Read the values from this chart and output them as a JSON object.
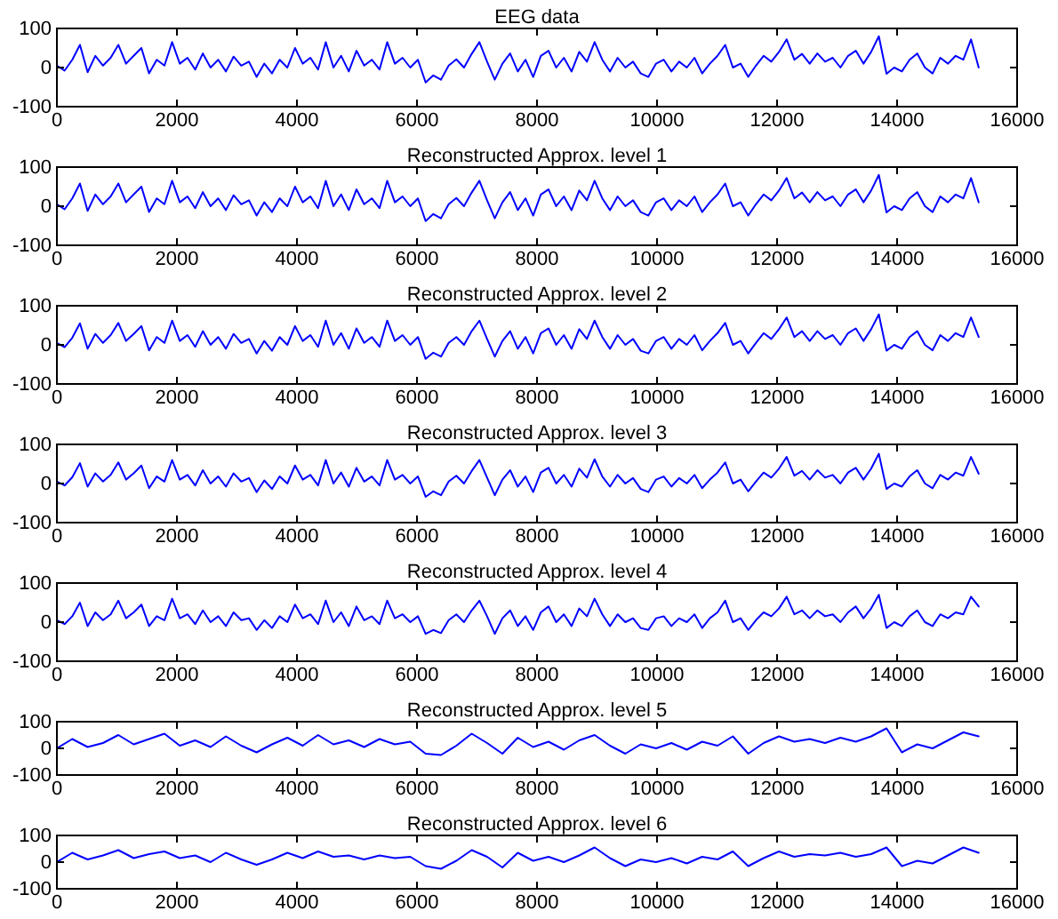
{
  "chart_data": [
    {
      "type": "line",
      "title": "EEG data",
      "color": "#0000ff",
      "xlim": [
        0,
        16000
      ],
      "ylim": [
        -100,
        100
      ],
      "xticks": [
        0,
        2000,
        4000,
        6000,
        8000,
        10000,
        12000,
        14000,
        16000
      ],
      "yticks": [
        -100,
        0,
        100
      ],
      "x": [
        0,
        128,
        256,
        384,
        512,
        640,
        768,
        896,
        1024,
        1152,
        1280,
        1408,
        1536,
        1664,
        1792,
        1920,
        2048,
        2176,
        2304,
        2432,
        2560,
        2688,
        2816,
        2944,
        3072,
        3200,
        3328,
        3456,
        3584,
        3712,
        3840,
        3968,
        4096,
        4224,
        4352,
        4480,
        4608,
        4736,
        4864,
        4992,
        5120,
        5248,
        5376,
        5504,
        5632,
        5760,
        5888,
        6016,
        6144,
        6272,
        6400,
        6528,
        6656,
        6784,
        6912,
        7040,
        7168,
        7296,
        7424,
        7552,
        7680,
        7808,
        7936,
        8064,
        8192,
        8320,
        8448,
        8576,
        8704,
        8832,
        8960,
        9088,
        9216,
        9344,
        9472,
        9600,
        9728,
        9856,
        9984,
        10112,
        10240,
        10368,
        10496,
        10624,
        10752,
        10880,
        11008,
        11136,
        11264,
        11392,
        11520,
        11648,
        11776,
        11904,
        12032,
        12160,
        12288,
        12416,
        12544,
        12672,
        12800,
        12928,
        13056,
        13184,
        13312,
        13440,
        13568,
        13696,
        13824,
        13952,
        14080,
        14208,
        14336,
        14464,
        14592,
        14720,
        14848,
        14976,
        15104,
        15232,
        15360
      ],
      "values": [
        5,
        -8,
        20,
        58,
        -12,
        30,
        5,
        25,
        58,
        10,
        30,
        50,
        -15,
        20,
        5,
        65,
        10,
        25,
        -5,
        36,
        0,
        20,
        -10,
        28,
        5,
        15,
        -24,
        10,
        -15,
        20,
        0,
        50,
        10,
        25,
        -5,
        65,
        0,
        30,
        -10,
        43,
        5,
        20,
        -5,
        65,
        10,
        25,
        0,
        20,
        -38,
        -20,
        -31,
        5,
        21,
        0,
        35,
        65,
        15,
        -31,
        10,
        36,
        -10,
        20,
        -24,
        30,
        43,
        0,
        25,
        -10,
        40,
        15,
        65,
        20,
        -10,
        25,
        0,
        15,
        -15,
        -24,
        10,
        20,
        -10,
        15,
        0,
        25,
        -15,
        10,
        30,
        58,
        0,
        10,
        -24,
        5,
        30,
        15,
        40,
        72,
        20,
        35,
        10,
        36,
        15,
        25,
        0,
        30,
        43,
        10,
        40,
        80,
        -16,
        0,
        -10,
        20,
        36,
        0,
        -15,
        25,
        10,
        30,
        20,
        72,
        0
      ]
    },
    {
      "type": "line",
      "title": "Reconstructed Approx. level 1",
      "color": "#0000ff",
      "xlim": [
        0,
        16000
      ],
      "ylim": [
        -100,
        100
      ],
      "xticks": [
        0,
        2000,
        4000,
        6000,
        8000,
        10000,
        12000,
        14000,
        16000
      ],
      "yticks": [
        -100,
        0,
        100
      ],
      "x": [
        0,
        128,
        256,
        384,
        512,
        640,
        768,
        896,
        1024,
        1152,
        1280,
        1408,
        1536,
        1664,
        1792,
        1920,
        2048,
        2176,
        2304,
        2432,
        2560,
        2688,
        2816,
        2944,
        3072,
        3200,
        3328,
        3456,
        3584,
        3712,
        3840,
        3968,
        4096,
        4224,
        4352,
        4480,
        4608,
        4736,
        4864,
        4992,
        5120,
        5248,
        5376,
        5504,
        5632,
        5760,
        5888,
        6016,
        6144,
        6272,
        6400,
        6528,
        6656,
        6784,
        6912,
        7040,
        7168,
        7296,
        7424,
        7552,
        7680,
        7808,
        7936,
        8064,
        8192,
        8320,
        8448,
        8576,
        8704,
        8832,
        8960,
        9088,
        9216,
        9344,
        9472,
        9600,
        9728,
        9856,
        9984,
        10112,
        10240,
        10368,
        10496,
        10624,
        10752,
        10880,
        11008,
        11136,
        11264,
        11392,
        11520,
        11648,
        11776,
        11904,
        12032,
        12160,
        12288,
        12416,
        12544,
        12672,
        12800,
        12928,
        13056,
        13184,
        13312,
        13440,
        13568,
        13696,
        13824,
        13952,
        14080,
        14208,
        14336,
        14464,
        14592,
        14720,
        14848,
        14976,
        15104,
        15232,
        15360
      ],
      "values": [
        5,
        -8,
        20,
        58,
        -12,
        30,
        5,
        25,
        58,
        10,
        30,
        50,
        -15,
        20,
        5,
        65,
        10,
        25,
        -5,
        36,
        0,
        20,
        -10,
        28,
        5,
        15,
        -24,
        10,
        -15,
        20,
        0,
        50,
        10,
        25,
        -5,
        65,
        0,
        30,
        -10,
        43,
        5,
        20,
        -5,
        65,
        10,
        25,
        0,
        20,
        -38,
        -20,
        -31,
        5,
        21,
        0,
        35,
        65,
        15,
        -31,
        10,
        36,
        -10,
        20,
        -24,
        30,
        43,
        0,
        25,
        -10,
        40,
        15,
        65,
        20,
        -10,
        25,
        0,
        15,
        -15,
        -24,
        10,
        20,
        -10,
        15,
        0,
        25,
        -15,
        10,
        30,
        58,
        0,
        10,
        -24,
        5,
        30,
        15,
        40,
        72,
        20,
        35,
        10,
        36,
        15,
        25,
        0,
        30,
        43,
        10,
        40,
        80,
        -16,
        0,
        -10,
        20,
        36,
        0,
        -15,
        25,
        10,
        30,
        20,
        72,
        10
      ]
    },
    {
      "type": "line",
      "title": "Reconstructed Approx. level 2",
      "color": "#0000ff",
      "xlim": [
        0,
        16000
      ],
      "ylim": [
        -100,
        100
      ],
      "xticks": [
        0,
        2000,
        4000,
        6000,
        8000,
        10000,
        12000,
        14000,
        16000
      ],
      "yticks": [
        -100,
        0,
        100
      ],
      "x": [
        0,
        128,
        256,
        384,
        512,
        640,
        768,
        896,
        1024,
        1152,
        1280,
        1408,
        1536,
        1664,
        1792,
        1920,
        2048,
        2176,
        2304,
        2432,
        2560,
        2688,
        2816,
        2944,
        3072,
        3200,
        3328,
        3456,
        3584,
        3712,
        3840,
        3968,
        4096,
        4224,
        4352,
        4480,
        4608,
        4736,
        4864,
        4992,
        5120,
        5248,
        5376,
        5504,
        5632,
        5760,
        5888,
        6016,
        6144,
        6272,
        6400,
        6528,
        6656,
        6784,
        6912,
        7040,
        7168,
        7296,
        7424,
        7552,
        7680,
        7808,
        7936,
        8064,
        8192,
        8320,
        8448,
        8576,
        8704,
        8832,
        8960,
        9088,
        9216,
        9344,
        9472,
        9600,
        9728,
        9856,
        9984,
        10112,
        10240,
        10368,
        10496,
        10624,
        10752,
        10880,
        11008,
        11136,
        11264,
        11392,
        11520,
        11648,
        11776,
        11904,
        12032,
        12160,
        12288,
        12416,
        12544,
        12672,
        12800,
        12928,
        13056,
        13184,
        13312,
        13440,
        13568,
        13696,
        13824,
        13952,
        14080,
        14208,
        14336,
        14464,
        14592,
        14720,
        14848,
        14976,
        15104,
        15232,
        15360
      ],
      "values": [
        5,
        -6,
        18,
        55,
        -10,
        28,
        5,
        25,
        56,
        10,
        28,
        48,
        -14,
        20,
        5,
        62,
        10,
        25,
        -5,
        35,
        0,
        20,
        -10,
        28,
        5,
        15,
        -22,
        10,
        -15,
        20,
        0,
        48,
        10,
        25,
        -5,
        62,
        0,
        30,
        -10,
        42,
        5,
        20,
        -5,
        62,
        10,
        25,
        0,
        20,
        -36,
        -20,
        -30,
        5,
        20,
        0,
        35,
        62,
        15,
        -30,
        10,
        35,
        -10,
        20,
        -22,
        30,
        42,
        0,
        25,
        -10,
        40,
        15,
        62,
        20,
        -10,
        25,
        0,
        15,
        -15,
        -22,
        10,
        20,
        -10,
        15,
        0,
        25,
        -14,
        10,
        30,
        56,
        0,
        10,
        -22,
        5,
        30,
        15,
        40,
        70,
        20,
        35,
        10,
        35,
        15,
        25,
        0,
        30,
        42,
        10,
        40,
        78,
        -15,
        0,
        -10,
        20,
        35,
        0,
        -14,
        25,
        10,
        30,
        20,
        70,
        20
      ]
    },
    {
      "type": "line",
      "title": "Reconstructed Approx. level 3",
      "color": "#0000ff",
      "xlim": [
        0,
        16000
      ],
      "ylim": [
        -100,
        100
      ],
      "xticks": [
        0,
        2000,
        4000,
        6000,
        8000,
        10000,
        12000,
        14000,
        16000
      ],
      "yticks": [
        -100,
        0,
        100
      ],
      "x": [
        0,
        128,
        256,
        384,
        512,
        640,
        768,
        896,
        1024,
        1152,
        1280,
        1408,
        1536,
        1664,
        1792,
        1920,
        2048,
        2176,
        2304,
        2432,
        2560,
        2688,
        2816,
        2944,
        3072,
        3200,
        3328,
        3456,
        3584,
        3712,
        3840,
        3968,
        4096,
        4224,
        4352,
        4480,
        4608,
        4736,
        4864,
        4992,
        5120,
        5248,
        5376,
        5504,
        5632,
        5760,
        5888,
        6016,
        6144,
        6272,
        6400,
        6528,
        6656,
        6784,
        6912,
        7040,
        7168,
        7296,
        7424,
        7552,
        7680,
        7808,
        7936,
        8064,
        8192,
        8320,
        8448,
        8576,
        8704,
        8832,
        8960,
        9088,
        9216,
        9344,
        9472,
        9600,
        9728,
        9856,
        9984,
        10112,
        10240,
        10368,
        10496,
        10624,
        10752,
        10880,
        11008,
        11136,
        11264,
        11392,
        11520,
        11648,
        11776,
        11904,
        12032,
        12160,
        12288,
        12416,
        12544,
        12672,
        12800,
        12928,
        13056,
        13184,
        13312,
        13440,
        13568,
        13696,
        13824,
        13952,
        14080,
        14208,
        14336,
        14464,
        14592,
        14720,
        14848,
        14976,
        15104,
        15232,
        15360
      ],
      "values": [
        5,
        -5,
        16,
        52,
        -8,
        26,
        5,
        22,
        54,
        10,
        26,
        46,
        -12,
        18,
        5,
        60,
        10,
        22,
        -5,
        34,
        0,
        18,
        -8,
        26,
        5,
        14,
        -22,
        8,
        -14,
        18,
        0,
        46,
        10,
        22,
        -5,
        60,
        0,
        28,
        -8,
        40,
        5,
        18,
        -5,
        60,
        10,
        22,
        0,
        18,
        -34,
        -20,
        -30,
        5,
        20,
        0,
        32,
        60,
        15,
        -30,
        10,
        34,
        -8,
        18,
        -22,
        28,
        40,
        0,
        22,
        -8,
        38,
        15,
        62,
        18,
        -8,
        22,
        0,
        14,
        -14,
        -22,
        10,
        18,
        -8,
        14,
        0,
        22,
        -12,
        10,
        28,
        54,
        0,
        10,
        -20,
        5,
        28,
        15,
        38,
        68,
        20,
        32,
        10,
        34,
        15,
        22,
        0,
        28,
        40,
        10,
        38,
        76,
        -14,
        0,
        -8,
        18,
        34,
        0,
        -12,
        22,
        10,
        28,
        20,
        68,
        25
      ]
    },
    {
      "type": "line",
      "title": "Reconstructed Approx. level 4",
      "color": "#0000ff",
      "xlim": [
        0,
        16000
      ],
      "ylim": [
        -100,
        100
      ],
      "xticks": [
        0,
        2000,
        4000,
        6000,
        8000,
        10000,
        12000,
        14000,
        16000
      ],
      "yticks": [
        -100,
        0,
        100
      ],
      "x": [
        0,
        128,
        256,
        384,
        512,
        640,
        768,
        896,
        1024,
        1152,
        1280,
        1408,
        1536,
        1664,
        1792,
        1920,
        2048,
        2176,
        2304,
        2432,
        2560,
        2688,
        2816,
        2944,
        3072,
        3200,
        3328,
        3456,
        3584,
        3712,
        3840,
        3968,
        4096,
        4224,
        4352,
        4480,
        4608,
        4736,
        4864,
        4992,
        5120,
        5248,
        5376,
        5504,
        5632,
        5760,
        5888,
        6016,
        6144,
        6272,
        6400,
        6528,
        6656,
        6784,
        6912,
        7040,
        7168,
        7296,
        7424,
        7552,
        7680,
        7808,
        7936,
        8064,
        8192,
        8320,
        8448,
        8576,
        8704,
        8832,
        8960,
        9088,
        9216,
        9344,
        9472,
        9600,
        9728,
        9856,
        9984,
        10112,
        10240,
        10368,
        10496,
        10624,
        10752,
        10880,
        11008,
        11136,
        11264,
        11392,
        11520,
        11648,
        11776,
        11904,
        12032,
        12160,
        12288,
        12416,
        12544,
        12672,
        12800,
        12928,
        13056,
        13184,
        13312,
        13440,
        13568,
        13696,
        13824,
        13952,
        14080,
        14208,
        14336,
        14464,
        14592,
        14720,
        14848,
        14976,
        15104,
        15232,
        15360
      ],
      "values": [
        5,
        -5,
        15,
        50,
        -10,
        25,
        5,
        20,
        55,
        10,
        25,
        45,
        -10,
        15,
        5,
        60,
        10,
        20,
        -5,
        30,
        0,
        15,
        -10,
        25,
        5,
        10,
        -20,
        5,
        -15,
        15,
        0,
        45,
        10,
        20,
        -5,
        55,
        0,
        25,
        -10,
        40,
        5,
        15,
        -5,
        55,
        10,
        20,
        0,
        15,
        -30,
        -20,
        -28,
        5,
        20,
        0,
        30,
        55,
        15,
        -30,
        10,
        30,
        -10,
        15,
        -20,
        25,
        40,
        0,
        20,
        -10,
        35,
        15,
        60,
        20,
        -10,
        20,
        0,
        10,
        -15,
        -20,
        10,
        15,
        -10,
        10,
        0,
        20,
        -15,
        10,
        25,
        55,
        0,
        10,
        -20,
        5,
        25,
        15,
        35,
        65,
        20,
        30,
        10,
        30,
        15,
        20,
        0,
        25,
        40,
        10,
        35,
        70,
        -15,
        0,
        -10,
        15,
        30,
        0,
        -10,
        20,
        10,
        25,
        20,
        65,
        40
      ]
    },
    {
      "type": "line",
      "title": "Reconstructed Approx. level 5",
      "color": "#0000ff",
      "xlim": [
        0,
        16000
      ],
      "ylim": [
        -100,
        100
      ],
      "xticks": [
        0,
        2000,
        4000,
        6000,
        8000,
        10000,
        12000,
        14000,
        16000
      ],
      "yticks": [
        -100,
        0,
        100
      ],
      "x": [
        0,
        256,
        512,
        768,
        1024,
        1280,
        1536,
        1792,
        2048,
        2304,
        2560,
        2816,
        3072,
        3328,
        3584,
        3840,
        4096,
        4352,
        4608,
        4864,
        5120,
        5376,
        5632,
        5888,
        6144,
        6400,
        6656,
        6912,
        7168,
        7424,
        7680,
        7936,
        8192,
        8448,
        8704,
        8960,
        9216,
        9472,
        9728,
        9984,
        10240,
        10496,
        10752,
        11008,
        11264,
        11520,
        11776,
        12032,
        12288,
        12544,
        12800,
        13056,
        13312,
        13568,
        13824,
        14080,
        14336,
        14592,
        14848,
        15104,
        15360
      ],
      "values": [
        0,
        35,
        5,
        20,
        50,
        15,
        35,
        55,
        10,
        30,
        5,
        45,
        10,
        -15,
        15,
        40,
        10,
        50,
        15,
        30,
        5,
        35,
        15,
        25,
        -20,
        -25,
        10,
        55,
        20,
        -20,
        40,
        5,
        25,
        -5,
        30,
        50,
        10,
        -20,
        15,
        0,
        20,
        -5,
        25,
        10,
        45,
        -20,
        20,
        45,
        25,
        35,
        20,
        40,
        25,
        45,
        75,
        -15,
        15,
        0,
        30,
        60,
        45
      ]
    },
    {
      "type": "line",
      "title": "Reconstructed Approx. level 6",
      "color": "#0000ff",
      "xlim": [
        0,
        16000
      ],
      "ylim": [
        -100,
        100
      ],
      "xticks": [
        0,
        2000,
        4000,
        6000,
        8000,
        10000,
        12000,
        14000,
        16000
      ],
      "yticks": [
        -100,
        0,
        100
      ],
      "x": [
        0,
        256,
        512,
        768,
        1024,
        1280,
        1536,
        1792,
        2048,
        2304,
        2560,
        2816,
        3072,
        3328,
        3584,
        3840,
        4096,
        4352,
        4608,
        4864,
        5120,
        5376,
        5632,
        5888,
        6144,
        6400,
        6656,
        6912,
        7168,
        7424,
        7680,
        7936,
        8192,
        8448,
        8704,
        8960,
        9216,
        9472,
        9728,
        9984,
        10240,
        10496,
        10752,
        11008,
        11264,
        11520,
        11776,
        12032,
        12288,
        12544,
        12800,
        13056,
        13312,
        13568,
        13824,
        14080,
        14336,
        14592,
        14848,
        15104,
        15360
      ],
      "values": [
        0,
        35,
        10,
        25,
        45,
        15,
        30,
        40,
        15,
        25,
        0,
        35,
        10,
        -10,
        10,
        35,
        15,
        40,
        20,
        25,
        10,
        25,
        15,
        20,
        -15,
        -25,
        5,
        45,
        20,
        -20,
        35,
        5,
        20,
        0,
        25,
        55,
        15,
        -15,
        10,
        0,
        15,
        -5,
        20,
        10,
        40,
        -15,
        15,
        40,
        20,
        30,
        25,
        35,
        20,
        30,
        55,
        -15,
        5,
        -5,
        25,
        55,
        35
      ]
    }
  ]
}
